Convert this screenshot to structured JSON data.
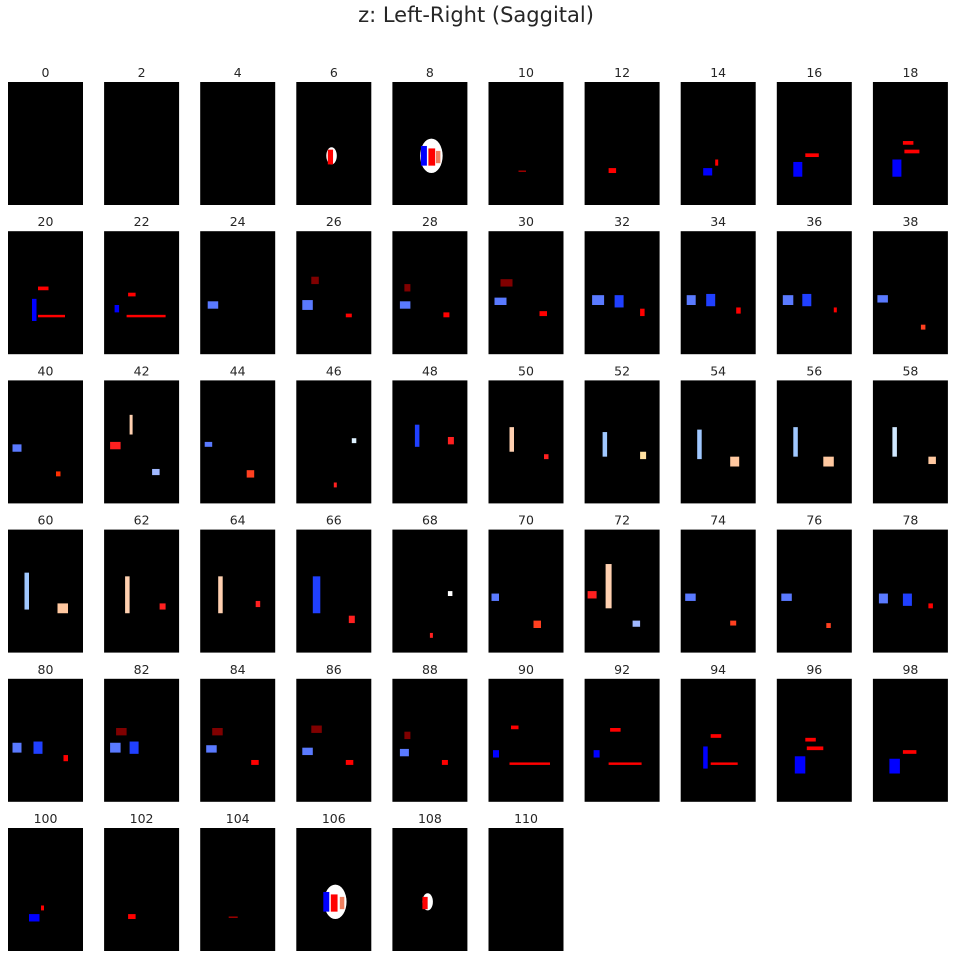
{
  "chart_data": {
    "type": "image-grid",
    "title": "z: Left-Right (Saggital)",
    "colormap": "coolwarm (overlay on black background)",
    "colors": {
      "background": "#000000",
      "page": "#ffffff",
      "text": "#262626"
    },
    "panels": [
      {
        "label": "0"
      },
      {
        "label": "2"
      },
      {
        "label": "4"
      },
      {
        "label": "6"
      },
      {
        "label": "8"
      },
      {
        "label": "10"
      },
      {
        "label": "12"
      },
      {
        "label": "14"
      },
      {
        "label": "16"
      },
      {
        "label": "18"
      },
      {
        "label": "20"
      },
      {
        "label": "22"
      },
      {
        "label": "24"
      },
      {
        "label": "26"
      },
      {
        "label": "28"
      },
      {
        "label": "30"
      },
      {
        "label": "32"
      },
      {
        "label": "34"
      },
      {
        "label": "36"
      },
      {
        "label": "38"
      },
      {
        "label": "40"
      },
      {
        "label": "42"
      },
      {
        "label": "44"
      },
      {
        "label": "46"
      },
      {
        "label": "48"
      },
      {
        "label": "50"
      },
      {
        "label": "52"
      },
      {
        "label": "54"
      },
      {
        "label": "56"
      },
      {
        "label": "58"
      },
      {
        "label": "60"
      },
      {
        "label": "62"
      },
      {
        "label": "64"
      },
      {
        "label": "66"
      },
      {
        "label": "68"
      },
      {
        "label": "70"
      },
      {
        "label": "72"
      },
      {
        "label": "74"
      },
      {
        "label": "76"
      },
      {
        "label": "78"
      },
      {
        "label": "80"
      },
      {
        "label": "82"
      },
      {
        "label": "84"
      },
      {
        "label": "86"
      },
      {
        "label": "88"
      },
      {
        "label": "90"
      },
      {
        "label": "92"
      },
      {
        "label": "94"
      },
      {
        "label": "96"
      },
      {
        "label": "98"
      },
      {
        "label": "100"
      },
      {
        "label": "102"
      },
      {
        "label": "104"
      },
      {
        "label": "106"
      },
      {
        "label": "108"
      },
      {
        "label": "110"
      }
    ]
  }
}
